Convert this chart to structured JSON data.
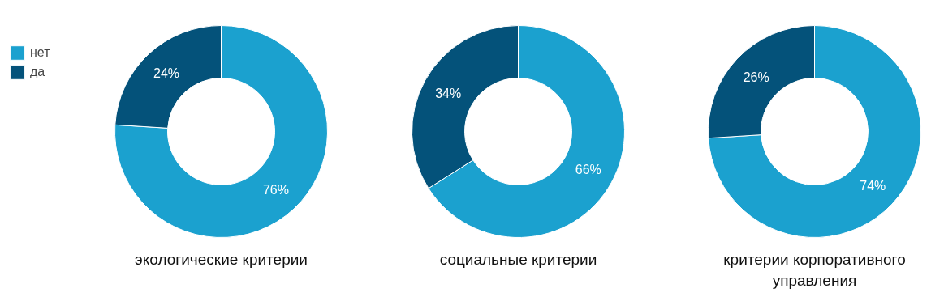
{
  "chart_data": [
    {
      "type": "donut",
      "title": "экологические критерии",
      "categories": [
        "нет",
        "да"
      ],
      "values": [
        76,
        24
      ],
      "colors": [
        "#1ba1cf",
        "#04527a"
      ],
      "value_labels": [
        "76%",
        "24%"
      ],
      "legend": "top left"
    },
    {
      "type": "donut",
      "title": "социальные критерии",
      "categories": [
        null,
        null
      ],
      "values": [
        66,
        34
      ],
      "colors": [
        "#1ba1cf",
        "#04527a"
      ],
      "value_labels": [
        "66%",
        "34%"
      ]
    },
    {
      "type": "donut",
      "title": "критерии корпоративного управления",
      "categories": [
        null,
        null
      ],
      "values": [
        74,
        26
      ],
      "colors": [
        "#1ba1cf",
        "#04527a"
      ],
      "value_labels": [
        "74%",
        "26%"
      ]
    }
  ]
}
